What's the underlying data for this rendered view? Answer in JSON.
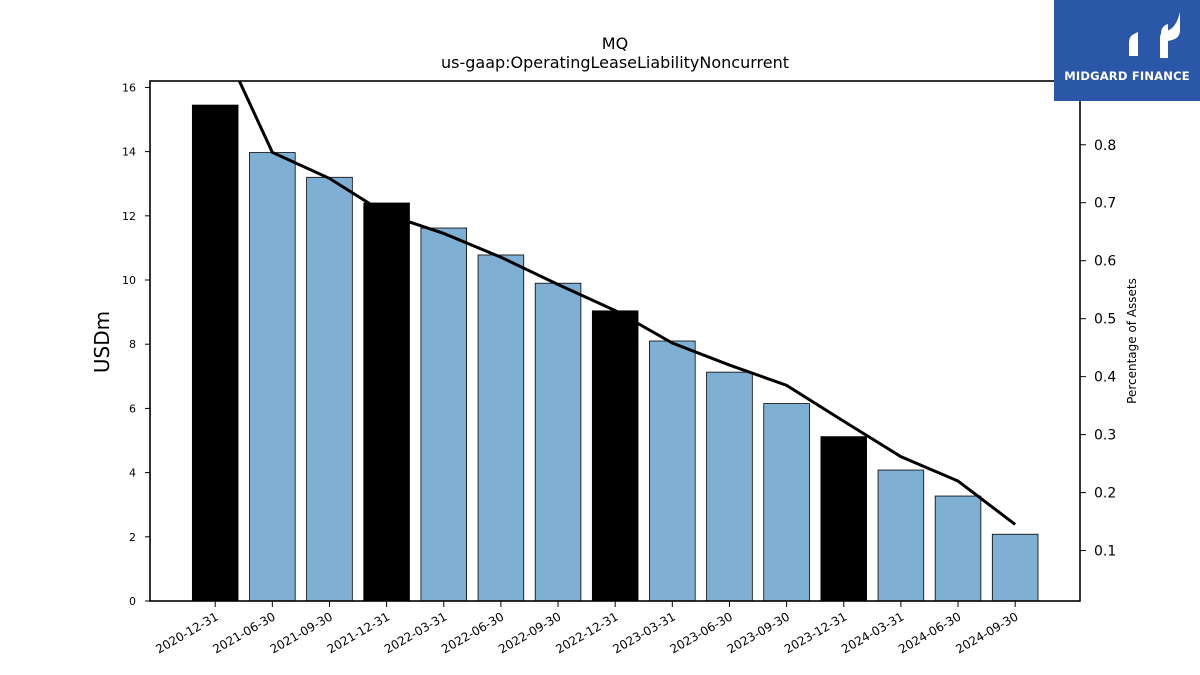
{
  "chart_data": {
    "type": "bar",
    "title": "MQ",
    "subtitle": "us-gaap:OperatingLeaseLiabilityNoncurrent",
    "ylabel": "USDm",
    "y2label": "Percentage of Assets",
    "ylim": [
      0,
      16.2
    ],
    "yticks": [
      0,
      2,
      4,
      6,
      8,
      10,
      12,
      14,
      16
    ],
    "y2lim": [
      0.013,
      0.91
    ],
    "y2ticks": [
      0.1,
      0.2,
      0.3,
      0.4,
      0.5,
      0.6,
      0.7,
      0.8
    ],
    "categories": [
      "2020-12-31",
      "2021-06-30",
      "2021-09-30",
      "2021-12-31",
      "2022-03-31",
      "2022-06-30",
      "2022-09-30",
      "2022-12-31",
      "2023-03-31",
      "2023-06-30",
      "2023-09-30",
      "2023-12-31",
      "2024-03-31",
      "2024-06-30",
      "2024-09-30"
    ],
    "series": [
      {
        "kind": "bar",
        "values": [
          15.45,
          13.97,
          13.2,
          12.4,
          11.62,
          10.78,
          9.9,
          9.04,
          8.1,
          7.13,
          6.15,
          5.12,
          4.08,
          3.27,
          2.08
        ],
        "annual": [
          true,
          false,
          false,
          true,
          false,
          false,
          false,
          true,
          false,
          false,
          false,
          true,
          false,
          false,
          false
        ]
      },
      {
        "kind": "line",
        "axis": "right",
        "values": [
          1.0,
          0.787,
          0.742,
          0.68,
          0.647,
          0.606,
          0.559,
          0.514,
          0.458,
          0.42,
          0.385,
          0.323,
          0.262,
          0.22,
          0.145
        ]
      }
    ],
    "colors": {
      "annual_bar": "#000000",
      "quarter_bar": "#7fb0d4",
      "line": "#000000"
    },
    "grid": false
  },
  "logo": {
    "text": "MIDGARD FINANCE",
    "color": "#2b57a8"
  }
}
